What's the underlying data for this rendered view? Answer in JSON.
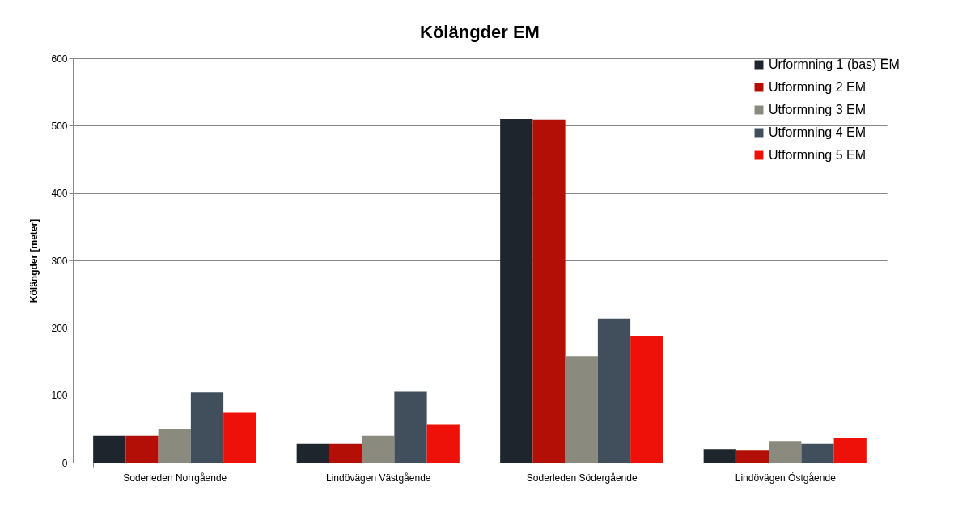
{
  "chart_data": {
    "type": "bar",
    "title": "Kölängder EM",
    "ylabel": "Kölängder [meter]",
    "categories": [
      "Soderleden Norrgående",
      "Lindövägen Västgående",
      "Soderleden Södergående",
      "Lindövägen Östgående"
    ],
    "series": [
      {
        "name": "Urformning 1 (bas) EM",
        "color": "#1f252d",
        "values": [
          40,
          28,
          510,
          20
        ]
      },
      {
        "name": "Utformning 2 EM",
        "color": "#b30f07",
        "values": [
          40,
          28,
          509,
          19
        ]
      },
      {
        "name": "Utformning 3 EM",
        "color": "#8a8a7f",
        "values": [
          50,
          40,
          158,
          32
        ]
      },
      {
        "name": "Utformning 4 EM",
        "color": "#414e5b",
        "values": [
          104,
          105,
          214,
          28
        ]
      },
      {
        "name": "Utformning 5 EM",
        "color": "#ed1109",
        "values": [
          75,
          57,
          188,
          37
        ]
      }
    ],
    "ylim": [
      0,
      600
    ],
    "yticks": [
      0,
      100,
      200,
      300,
      400,
      500,
      600
    ],
    "grid": "y",
    "legend": "top right"
  }
}
